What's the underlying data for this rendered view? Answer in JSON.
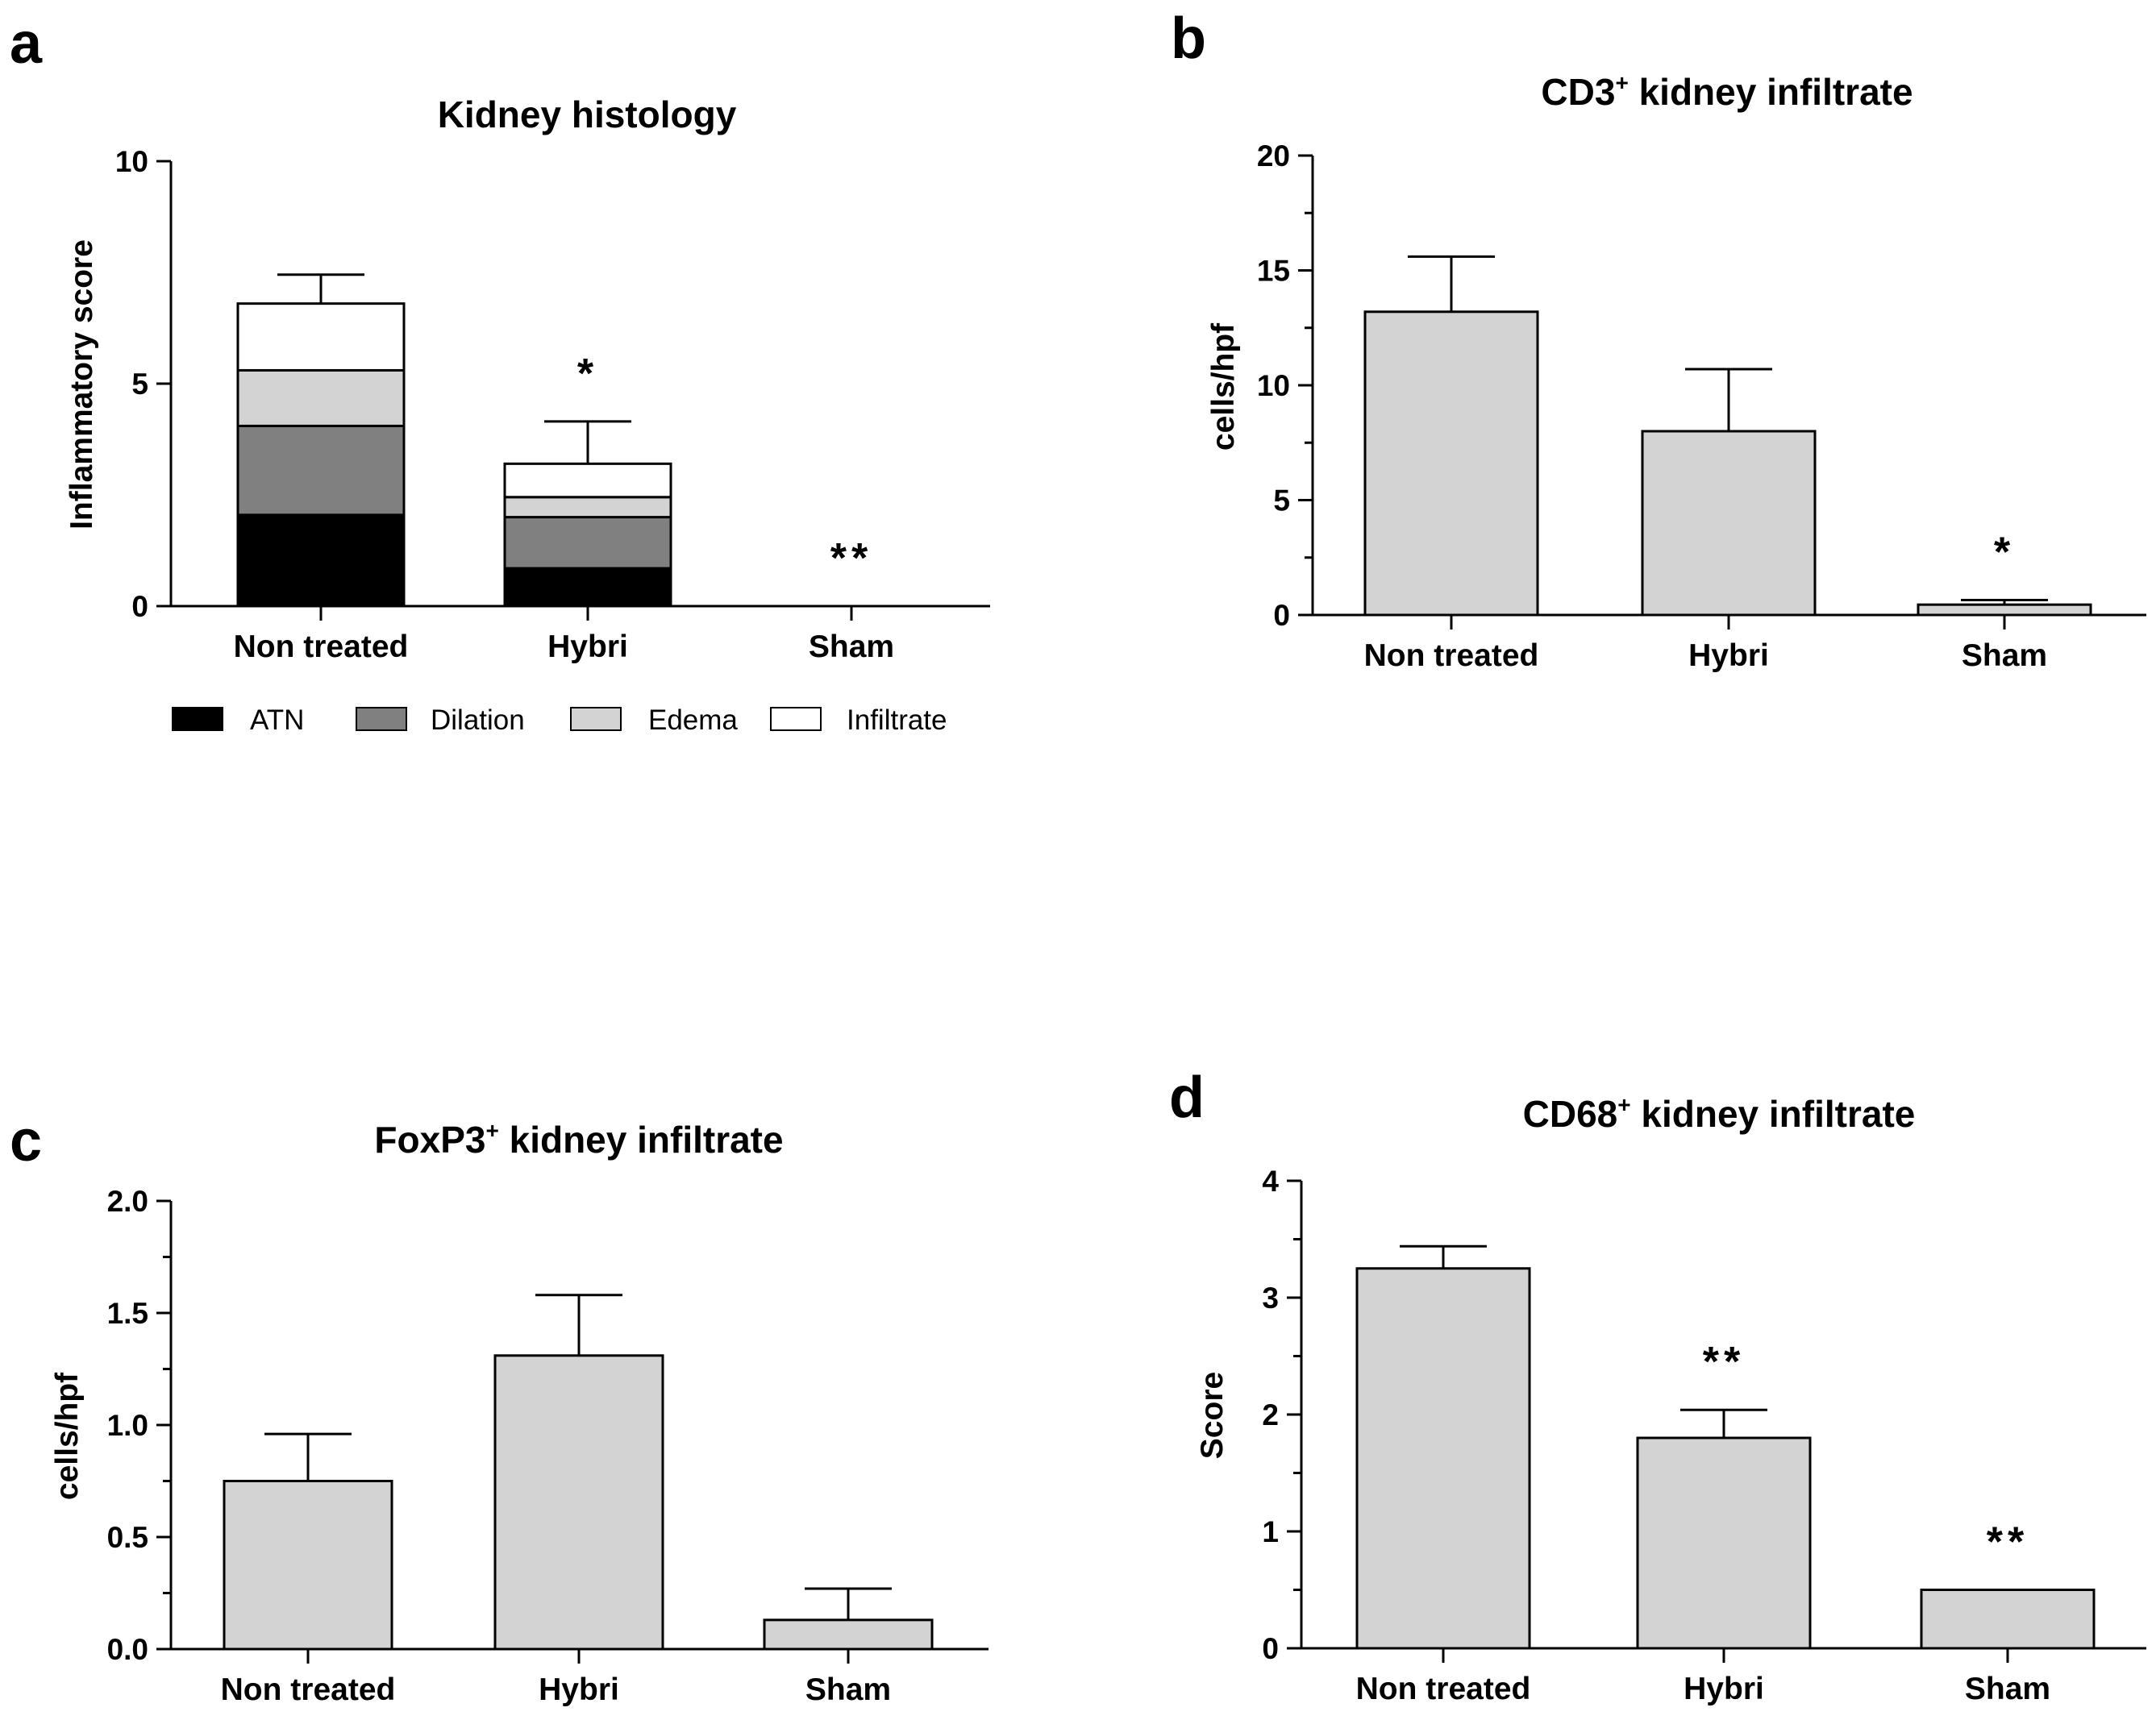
{
  "colors": {
    "bar": "#d3d3d3",
    "atn": "#000000",
    "dilation": "#808080",
    "edema": "#d3d3d3",
    "infiltrate": "#ffffff"
  },
  "chart_data": [
    {
      "panel": "a",
      "type": "bar",
      "stacked": true,
      "title": "Kidney histology",
      "ylabel": "Inflammatory score",
      "xlabel": "",
      "categories": [
        "Non treated",
        "Hybri",
        "Sham"
      ],
      "ylim": [
        0,
        10
      ],
      "yticks": [
        "0",
        "5",
        "10"
      ],
      "series": [
        {
          "name": "ATN",
          "values": [
            2.05,
            0.85,
            0
          ]
        },
        {
          "name": "Dilation",
          "values": [
            2.0,
            1.15,
            0
          ]
        },
        {
          "name": "Edema",
          "values": [
            1.25,
            0.45,
            0
          ]
        },
        {
          "name": "Infiltrate",
          "values": [
            1.5,
            0.75,
            0
          ]
        }
      ],
      "error": [
        0.65,
        0.95,
        0
      ],
      "significance": [
        "",
        "*",
        "**"
      ],
      "legend": "bottom"
    },
    {
      "panel": "b",
      "type": "bar",
      "title_main": "CD3",
      "title_sup": "+",
      "title_rest": " kidney infiltrate",
      "ylabel": "cells/hpf",
      "categories": [
        "Non treated",
        "Hybri",
        "Sham"
      ],
      "values": [
        13.2,
        8.0,
        0.45
      ],
      "error": [
        2.4,
        2.7,
        0.2
      ],
      "ylim": [
        0,
        20
      ],
      "yticks": [
        "0",
        "5",
        "10",
        "15",
        "20"
      ],
      "significance": [
        "",
        "",
        "*"
      ]
    },
    {
      "panel": "c",
      "type": "bar",
      "title_main": "FoxP3",
      "title_sup": "+",
      "title_rest": " kidney infiltrate",
      "ylabel": "cells/hpf",
      "categories": [
        "Non treated",
        "Hybri",
        "Sham"
      ],
      "values": [
        0.75,
        1.31,
        0.13
      ],
      "error": [
        0.21,
        0.27,
        0.14
      ],
      "ylim": [
        0,
        2.0
      ],
      "yticks": [
        "0.0",
        "0.5",
        "1.0",
        "1.5",
        "2.0"
      ],
      "significance": [
        "",
        "",
        ""
      ]
    },
    {
      "panel": "d",
      "type": "bar",
      "title_main": "CD68",
      "title_sup": "+",
      "title_rest": " kidney infiltrate",
      "ylabel": "Score",
      "categories": [
        "Non treated",
        "Hybri",
        "Sham"
      ],
      "values": [
        3.25,
        1.8,
        0.5
      ],
      "error": [
        0.19,
        0.24,
        0
      ],
      "ylim": [
        0,
        4
      ],
      "yticks": [
        "0",
        "1",
        "2",
        "3",
        "4"
      ],
      "significance": [
        "",
        "**",
        "**"
      ]
    }
  ]
}
